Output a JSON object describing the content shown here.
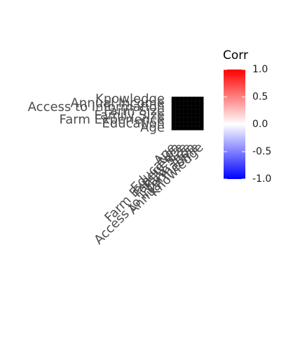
{
  "chart_data": {
    "type": "heatmap",
    "title": "",
    "xlabel": "",
    "ylabel": "",
    "variables": [
      "Age",
      "Education",
      "Farm Experience",
      "Family Size",
      "Farm Size",
      "Access to Information",
      "Annual Income",
      "Knowledge"
    ],
    "y_tick_labels_visible": [
      "Annual Income",
      "Knowledge",
      "Access to Information",
      "Farm Size",
      "Family Size",
      "Farm Experience",
      "Education",
      "Age"
    ],
    "cell_fill": "#000000",
    "grid": false,
    "legend": {
      "title": "Corr",
      "placement": "top-right",
      "ticks": [
        "1.0",
        "0.5",
        "0.0",
        "-0.5",
        "-1.0"
      ],
      "tick_values": [
        1.0,
        0.5,
        0.0,
        -0.5,
        -1.0
      ],
      "range": [
        -1.0,
        1.0
      ],
      "colors": {
        "high": "#ff0000",
        "mid": "#ffffff",
        "low": "#0000ff"
      }
    }
  }
}
